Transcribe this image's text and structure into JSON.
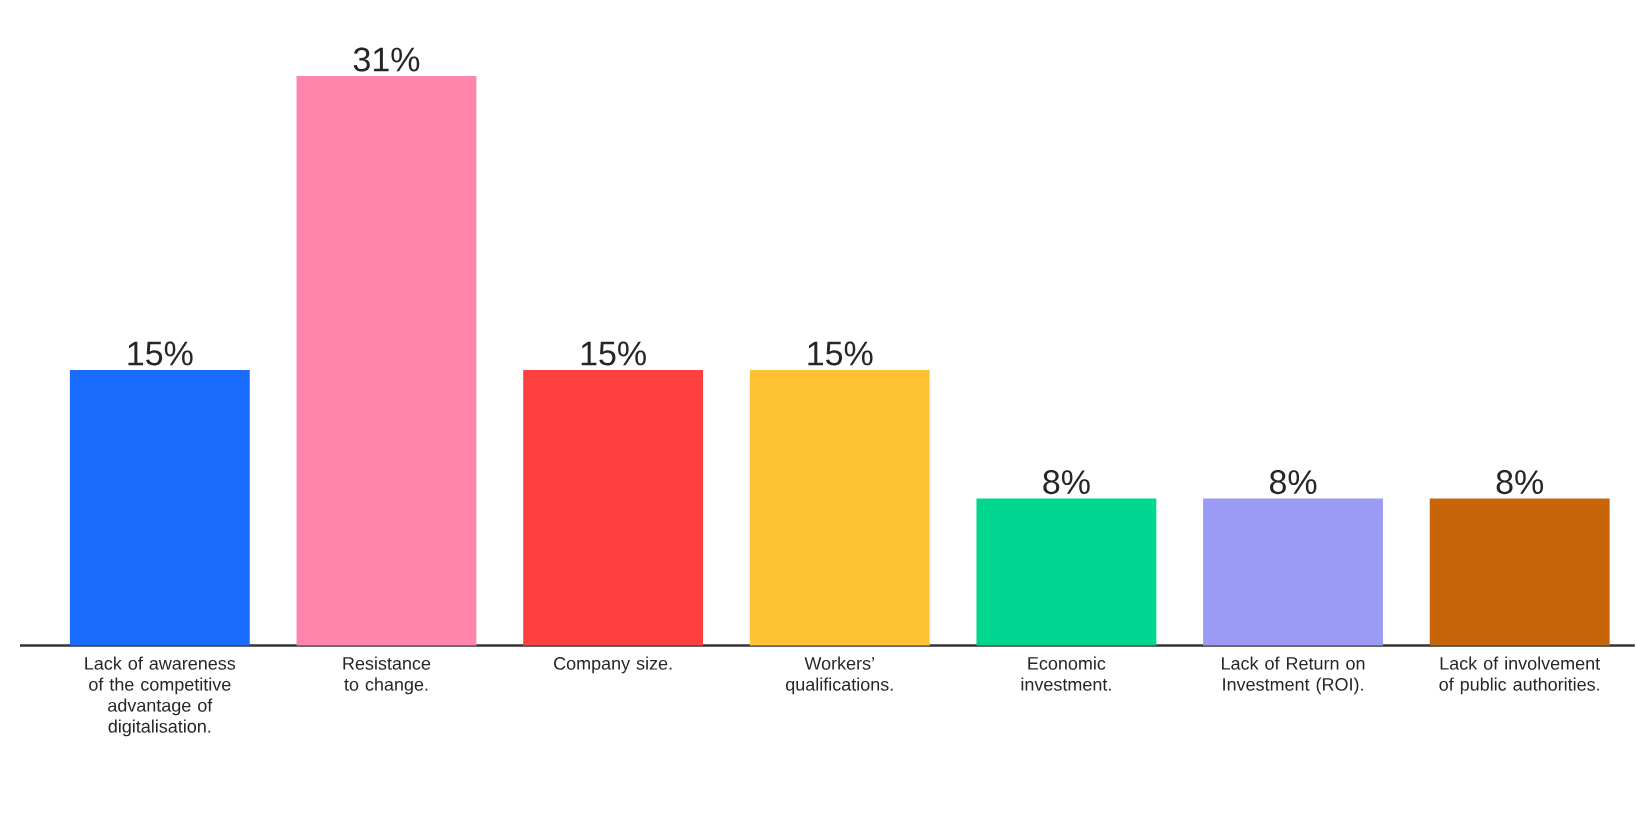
{
  "chart_data": {
    "type": "bar",
    "categories": [
      "Lack of awareness of the competitive advantage of digitalisation.",
      "Resistance to change.",
      "Company size.",
      "Workers’ qualifications.",
      "Economic investment.",
      "Lack of Return on Investment (ROI).",
      "Lack of involvement of public authorities."
    ],
    "values": [
      15,
      31,
      15,
      15,
      8,
      8,
      8
    ],
    "value_labels": [
      "15%",
      "31%",
      "15%",
      "15%",
      "8%",
      "8%",
      "8%"
    ],
    "colors": [
      "#1a6cff",
      "#ff85aa",
      "#ff4040",
      "#ffc233",
      "#00d68f",
      "#9b9bf5",
      "#c8640a"
    ]
  }
}
